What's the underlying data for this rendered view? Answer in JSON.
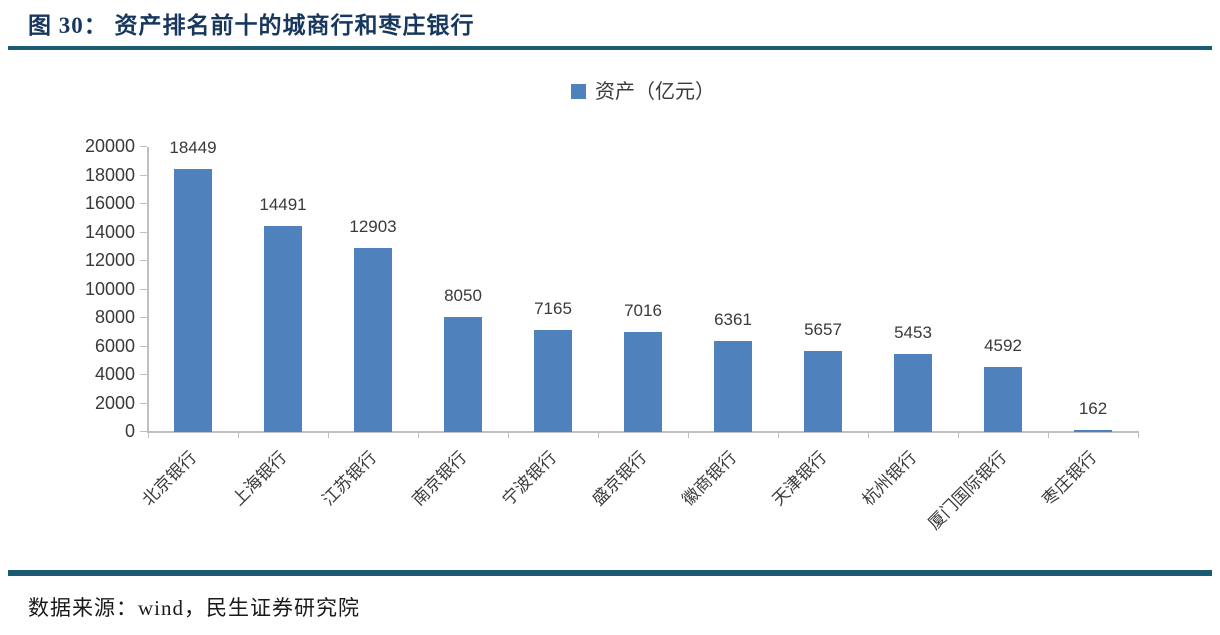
{
  "header": {
    "title": "图 30：  资产排名前十的城商行和枣庄银行"
  },
  "footer": {
    "source": "数据来源：wind，民生证券研究院"
  },
  "colors": {
    "bar": "#4F81BD",
    "title_text": "#17375E",
    "divider": "#1B5A73",
    "axis": "#BFBFBF",
    "tick_label": "#3A3A3A",
    "footer_text": "#1A1A1A"
  },
  "chart_data": {
    "type": "bar",
    "title": "图 30：资产排名前十的城商行和枣庄银行",
    "legend": "资产（亿元）",
    "legend_position": "top-center",
    "categories": [
      "北京银行",
      "上海银行",
      "江苏银行",
      "南京银行",
      "宁波银行",
      "盛京银行",
      "徽商银行",
      "天津银行",
      "杭州银行",
      "厦门国际银行",
      "枣庄银行"
    ],
    "values": [
      18449,
      14491,
      12903,
      8050,
      7165,
      7016,
      6361,
      5657,
      5453,
      4592,
      162
    ],
    "xlabel": "",
    "ylabel": "",
    "ylim": [
      0,
      20000
    ],
    "ytick_step": 2000,
    "grid": false,
    "data_labels": true
  }
}
